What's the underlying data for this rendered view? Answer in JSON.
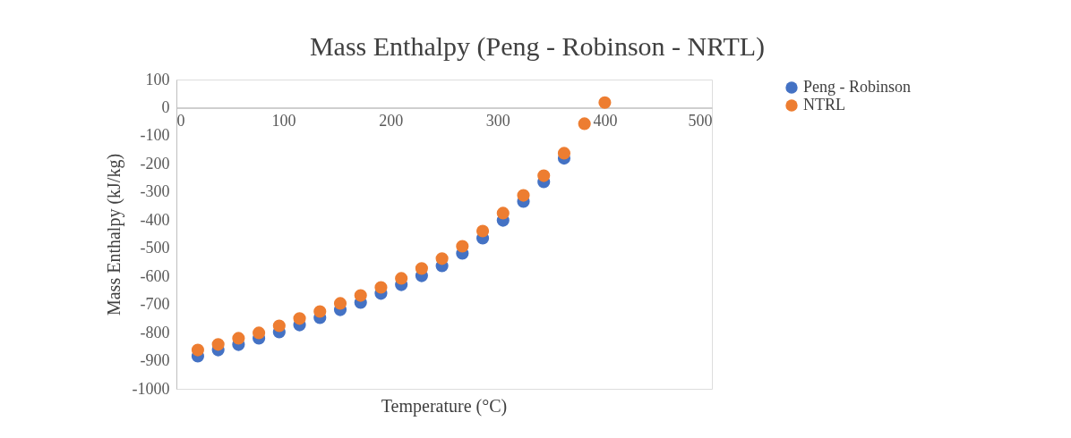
{
  "chart_data": {
    "type": "scatter",
    "title": "Mass Enthalpy (Peng - Robinson - NRTL)",
    "xlabel": "Temperature (°C)",
    "ylabel": "Mass Enthalpy (kJ/kg)",
    "x": [
      20,
      39,
      58,
      77,
      96,
      115,
      134,
      153,
      172,
      191,
      210,
      229,
      248,
      267,
      286,
      305,
      324,
      343,
      362,
      381,
      400
    ],
    "series": [
      {
        "name": "Peng - Robinson",
        "color": "#4472c4",
        "values": [
          -884,
          -862,
          -843,
          -820,
          -798,
          -773,
          -747,
          -719,
          -693,
          -661,
          -630,
          -598,
          -563,
          -518,
          -464,
          -401,
          -334,
          -264,
          -180,
          null,
          null
        ]
      },
      {
        "name": "NTRL",
        "color": "#ed7d31",
        "values": [
          -862,
          -842,
          -820,
          -801,
          -776,
          -750,
          -725,
          -696,
          -668,
          -639,
          -607,
          -572,
          -537,
          -493,
          -439,
          -375,
          -312,
          -242,
          -162,
          -57,
          18
        ]
      }
    ],
    "xlim": [
      0,
      500
    ],
    "xticks": [
      0,
      100,
      200,
      300,
      400,
      500
    ],
    "ylim": [
      -1000,
      100
    ],
    "yticks": [
      -1000,
      -900,
      -800,
      -700,
      -600,
      -500,
      -400,
      -300,
      -200,
      -100,
      0,
      100
    ],
    "marker": "circle",
    "legend": "right"
  }
}
